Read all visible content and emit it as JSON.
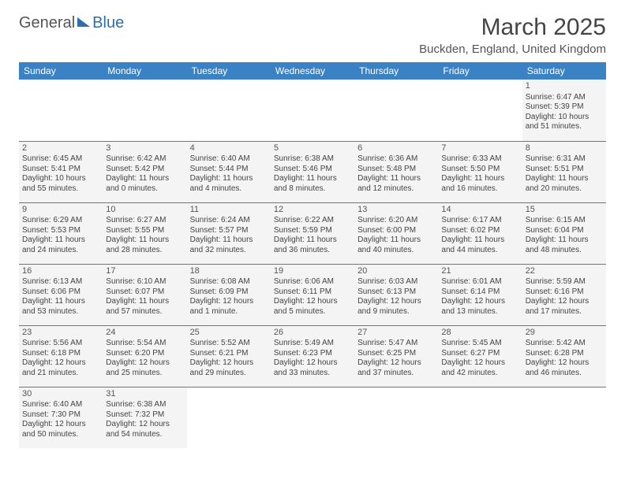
{
  "logo": {
    "part1": "General",
    "part2": "Blue"
  },
  "title": "March 2025",
  "location": "Buckden, England, United Kingdom",
  "colors": {
    "header_bg": "#3b82c4",
    "header_text": "#ffffff",
    "cell_bg": "#f4f4f4",
    "border": "#3b82c4",
    "logo_blue": "#2b6fb0",
    "text": "#444444"
  },
  "day_headers": [
    "Sunday",
    "Monday",
    "Tuesday",
    "Wednesday",
    "Thursday",
    "Friday",
    "Saturday"
  ],
  "weeks": [
    [
      null,
      null,
      null,
      null,
      null,
      null,
      {
        "n": "1",
        "sr": "6:47 AM",
        "ss": "5:39 PM",
        "dl": "10 hours and 51 minutes."
      }
    ],
    [
      {
        "n": "2",
        "sr": "6:45 AM",
        "ss": "5:41 PM",
        "dl": "10 hours and 55 minutes."
      },
      {
        "n": "3",
        "sr": "6:42 AM",
        "ss": "5:42 PM",
        "dl": "11 hours and 0 minutes."
      },
      {
        "n": "4",
        "sr": "6:40 AM",
        "ss": "5:44 PM",
        "dl": "11 hours and 4 minutes."
      },
      {
        "n": "5",
        "sr": "6:38 AM",
        "ss": "5:46 PM",
        "dl": "11 hours and 8 minutes."
      },
      {
        "n": "6",
        "sr": "6:36 AM",
        "ss": "5:48 PM",
        "dl": "11 hours and 12 minutes."
      },
      {
        "n": "7",
        "sr": "6:33 AM",
        "ss": "5:50 PM",
        "dl": "11 hours and 16 minutes."
      },
      {
        "n": "8",
        "sr": "6:31 AM",
        "ss": "5:51 PM",
        "dl": "11 hours and 20 minutes."
      }
    ],
    [
      {
        "n": "9",
        "sr": "6:29 AM",
        "ss": "5:53 PM",
        "dl": "11 hours and 24 minutes."
      },
      {
        "n": "10",
        "sr": "6:27 AM",
        "ss": "5:55 PM",
        "dl": "11 hours and 28 minutes."
      },
      {
        "n": "11",
        "sr": "6:24 AM",
        "ss": "5:57 PM",
        "dl": "11 hours and 32 minutes."
      },
      {
        "n": "12",
        "sr": "6:22 AM",
        "ss": "5:59 PM",
        "dl": "11 hours and 36 minutes."
      },
      {
        "n": "13",
        "sr": "6:20 AM",
        "ss": "6:00 PM",
        "dl": "11 hours and 40 minutes."
      },
      {
        "n": "14",
        "sr": "6:17 AM",
        "ss": "6:02 PM",
        "dl": "11 hours and 44 minutes."
      },
      {
        "n": "15",
        "sr": "6:15 AM",
        "ss": "6:04 PM",
        "dl": "11 hours and 48 minutes."
      }
    ],
    [
      {
        "n": "16",
        "sr": "6:13 AM",
        "ss": "6:06 PM",
        "dl": "11 hours and 53 minutes."
      },
      {
        "n": "17",
        "sr": "6:10 AM",
        "ss": "6:07 PM",
        "dl": "11 hours and 57 minutes."
      },
      {
        "n": "18",
        "sr": "6:08 AM",
        "ss": "6:09 PM",
        "dl": "12 hours and 1 minute."
      },
      {
        "n": "19",
        "sr": "6:06 AM",
        "ss": "6:11 PM",
        "dl": "12 hours and 5 minutes."
      },
      {
        "n": "20",
        "sr": "6:03 AM",
        "ss": "6:13 PM",
        "dl": "12 hours and 9 minutes."
      },
      {
        "n": "21",
        "sr": "6:01 AM",
        "ss": "6:14 PM",
        "dl": "12 hours and 13 minutes."
      },
      {
        "n": "22",
        "sr": "5:59 AM",
        "ss": "6:16 PM",
        "dl": "12 hours and 17 minutes."
      }
    ],
    [
      {
        "n": "23",
        "sr": "5:56 AM",
        "ss": "6:18 PM",
        "dl": "12 hours and 21 minutes."
      },
      {
        "n": "24",
        "sr": "5:54 AM",
        "ss": "6:20 PM",
        "dl": "12 hours and 25 minutes."
      },
      {
        "n": "25",
        "sr": "5:52 AM",
        "ss": "6:21 PM",
        "dl": "12 hours and 29 minutes."
      },
      {
        "n": "26",
        "sr": "5:49 AM",
        "ss": "6:23 PM",
        "dl": "12 hours and 33 minutes."
      },
      {
        "n": "27",
        "sr": "5:47 AM",
        "ss": "6:25 PM",
        "dl": "12 hours and 37 minutes."
      },
      {
        "n": "28",
        "sr": "5:45 AM",
        "ss": "6:27 PM",
        "dl": "12 hours and 42 minutes."
      },
      {
        "n": "29",
        "sr": "5:42 AM",
        "ss": "6:28 PM",
        "dl": "12 hours and 46 minutes."
      }
    ],
    [
      {
        "n": "30",
        "sr": "6:40 AM",
        "ss": "7:30 PM",
        "dl": "12 hours and 50 minutes."
      },
      {
        "n": "31",
        "sr": "6:38 AM",
        "ss": "7:32 PM",
        "dl": "12 hours and 54 minutes."
      },
      null,
      null,
      null,
      null,
      null
    ]
  ],
  "labels": {
    "sunrise": "Sunrise:",
    "sunset": "Sunset:",
    "daylight": "Daylight:"
  }
}
